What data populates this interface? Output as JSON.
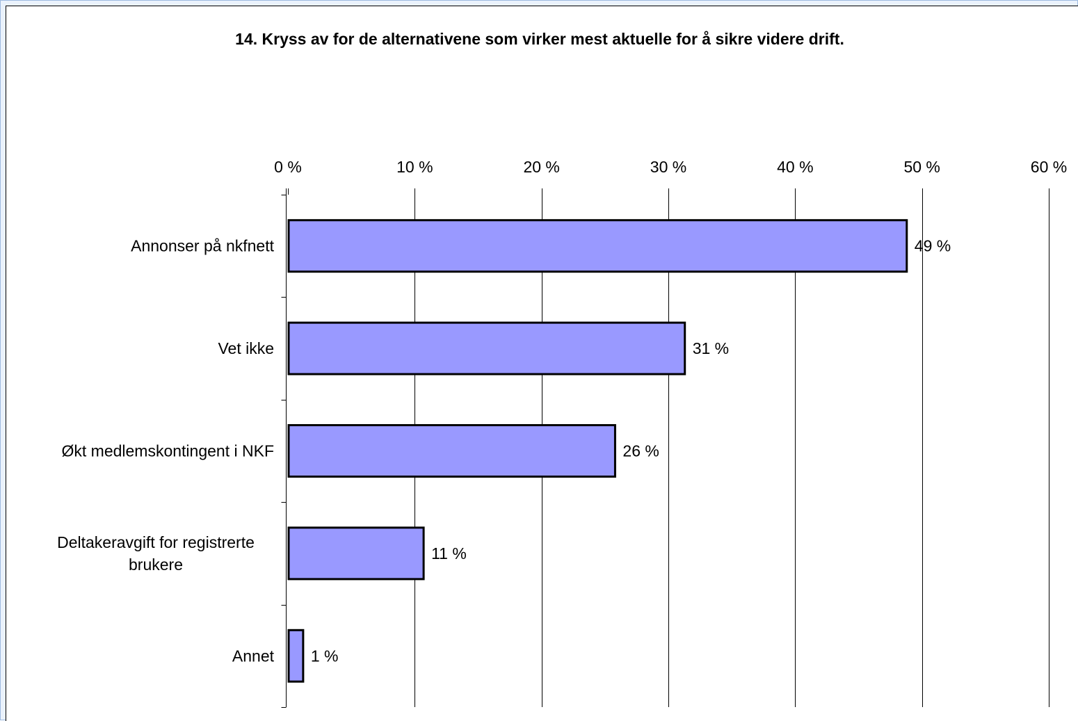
{
  "chart_data": {
    "type": "bar",
    "orientation": "horizontal",
    "title": "14. Kryss av for de alternativene som virker mest aktuelle for å sikre videre drift.",
    "xlabel": "",
    "ylabel": "",
    "categories": [
      "Annonser på nkfnett",
      "Vet ikke",
      "Økt medlemskontingent i NKF",
      "Deltakeravgift for registrerte brukere",
      "Annet"
    ],
    "category_lines": [
      [
        "Annonser på nkfnett"
      ],
      [
        "Vet ikke"
      ],
      [
        "Økt medlemskontingent i NKF"
      ],
      [
        "Deltakeravgift for registrerte",
        "brukere"
      ],
      [
        "Annet"
      ]
    ],
    "values": [
      48.8,
      31.3,
      25.8,
      10.7,
      1.2
    ],
    "data_labels": [
      "49 %",
      "31 %",
      "26 %",
      "11 %",
      "1 %"
    ],
    "xlim": [
      0,
      60
    ],
    "x_ticks": [
      0,
      10,
      20,
      30,
      40,
      50,
      60
    ],
    "x_tick_labels": [
      "0 %",
      "10 %",
      "20 %",
      "30 %",
      "40 %",
      "50 %",
      "60 %"
    ],
    "axis_position": "top",
    "grid": true,
    "legend": "none",
    "bar_color": "#9999ff",
    "bar_edge_color": "#000000"
  }
}
